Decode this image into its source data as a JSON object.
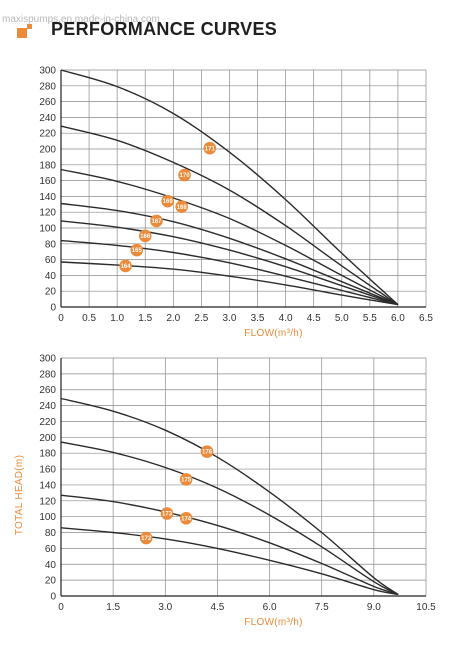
{
  "header": {
    "watermark": "maxispumps.en.made-in-china.com",
    "title": "PERFORMANCE CURVES"
  },
  "colors": {
    "accent": "#ea8a3a",
    "curve": "#2b2b2b",
    "grid": "#8a8a8a"
  },
  "chart_data": [
    {
      "type": "line",
      "xlabel": "FLOW(m³/h)",
      "ylabel": "",
      "xlim": [
        0,
        6.5
      ],
      "ylim": [
        0,
        300
      ],
      "xticks": [
        "0",
        "0.5",
        "1.0",
        "1.5",
        "2.0",
        "2.5",
        "3.0",
        "3.5",
        "4.0",
        "4.5",
        "5.0",
        "5.5",
        "6.0",
        "6.5"
      ],
      "yticks": [
        "0",
        "20",
        "40",
        "60",
        "80",
        "100",
        "120",
        "140",
        "160",
        "180",
        "200",
        "220",
        "240",
        "260",
        "280",
        "300"
      ],
      "grid": true,
      "series": [
        {
          "name": "171",
          "x": [
            0,
            1.0,
            2.0,
            3.0,
            4.0,
            5.0,
            6.0
          ],
          "y": [
            300,
            279,
            245,
            196,
            136,
            68,
            3
          ],
          "label_x": 2.65,
          "label_y": 201
        },
        {
          "name": "170",
          "x": [
            0,
            1.0,
            2.0,
            3.0,
            4.0,
            5.0,
            6.0
          ],
          "y": [
            229,
            211,
            183,
            148,
            103,
            52,
            3
          ],
          "label_x": 2.2,
          "label_y": 167
        },
        {
          "name": "169",
          "x": [
            0,
            1.0,
            2.0,
            3.0,
            4.0,
            5.0,
            6.0
          ],
          "y": [
            174,
            159,
            138,
            112,
            78,
            40,
            3
          ],
          "label_x": 1.9,
          "label_y": 134
        },
        {
          "name": "168",
          "x": [
            0,
            1.0,
            2.0,
            3.0,
            4.0,
            5.0,
            6.0
          ],
          "y": [
            131,
            122,
            108,
            87,
            61,
            32,
            3
          ],
          "label_x": 2.15,
          "label_y": 127
        },
        {
          "name": "167",
          "x": [
            0,
            1.0,
            2.0,
            3.0,
            4.0,
            5.0,
            6.0
          ],
          "y": [
            109,
            101,
            89,
            72,
            51,
            27,
            3
          ],
          "label_x": 1.7,
          "label_y": 109
        },
        {
          "name": "166",
          "x": [
            0,
            1.0,
            2.0,
            3.0,
            4.0,
            5.0,
            6.0
          ],
          "y": [
            84,
            78,
            69,
            56,
            39,
            21,
            3
          ],
          "label_x": 1.5,
          "label_y": 90
        },
        {
          "name": "165",
          "x": [
            0,
            1.0,
            2.0,
            3.0,
            4.0,
            5.0,
            6.0
          ],
          "y": [
            57,
            53,
            48,
            39,
            28,
            15,
            3
          ],
          "label_x": 1.35,
          "label_y": 72
        },
        {
          "name": "164",
          "x": [],
          "y": [],
          "label_x": 1.15,
          "label_y": 52
        }
      ]
    },
    {
      "type": "line",
      "xlabel": "FLOW(m³/h)",
      "ylabel": "TOTAL HEAD(m)",
      "xlim": [
        0,
        10.5
      ],
      "ylim": [
        0,
        300
      ],
      "xticks": [
        "0",
        "1.5",
        "3.0",
        "4.5",
        "6.0",
        "7.5",
        "9.0",
        "10.5"
      ],
      "yticks": [
        "0",
        "20",
        "40",
        "60",
        "80",
        "100",
        "120",
        "140",
        "160",
        "180",
        "200",
        "220",
        "240",
        "260",
        "280",
        "300"
      ],
      "grid": true,
      "series": [
        {
          "name": "176",
          "x": [
            0,
            1.5,
            3.0,
            4.5,
            6.0,
            7.5,
            9.0,
            9.7
          ],
          "y": [
            249,
            233,
            209,
            175,
            131,
            80,
            23,
            2
          ],
          "label_x": 4.2,
          "label_y": 182
        },
        {
          "name": "175",
          "x": [
            0,
            1.5,
            3.0,
            4.5,
            6.0,
            7.5,
            9.0,
            9.7
          ],
          "y": [
            194,
            181,
            162,
            136,
            102,
            62,
            18,
            2
          ],
          "label_x": 3.6,
          "label_y": 147
        },
        {
          "name": "174",
          "x": [
            0,
            1.5,
            3.0,
            4.5,
            6.0,
            7.5,
            9.0,
            9.7
          ],
          "y": [
            127,
            119,
            106,
            89,
            67,
            41,
            12,
            2
          ],
          "label_x": 3.6,
          "label_y": 98
        },
        {
          "name": "173",
          "x": [],
          "y": [],
          "label_x": 3.05,
          "label_y": 104
        },
        {
          "name": "172",
          "x": [
            0,
            1.5,
            3.0,
            4.5,
            6.0,
            7.5,
            9.0,
            9.7
          ],
          "y": [
            86,
            80,
            72,
            60,
            45,
            28,
            8,
            2
          ],
          "label_x": 2.45,
          "label_y": 73
        }
      ]
    }
  ]
}
